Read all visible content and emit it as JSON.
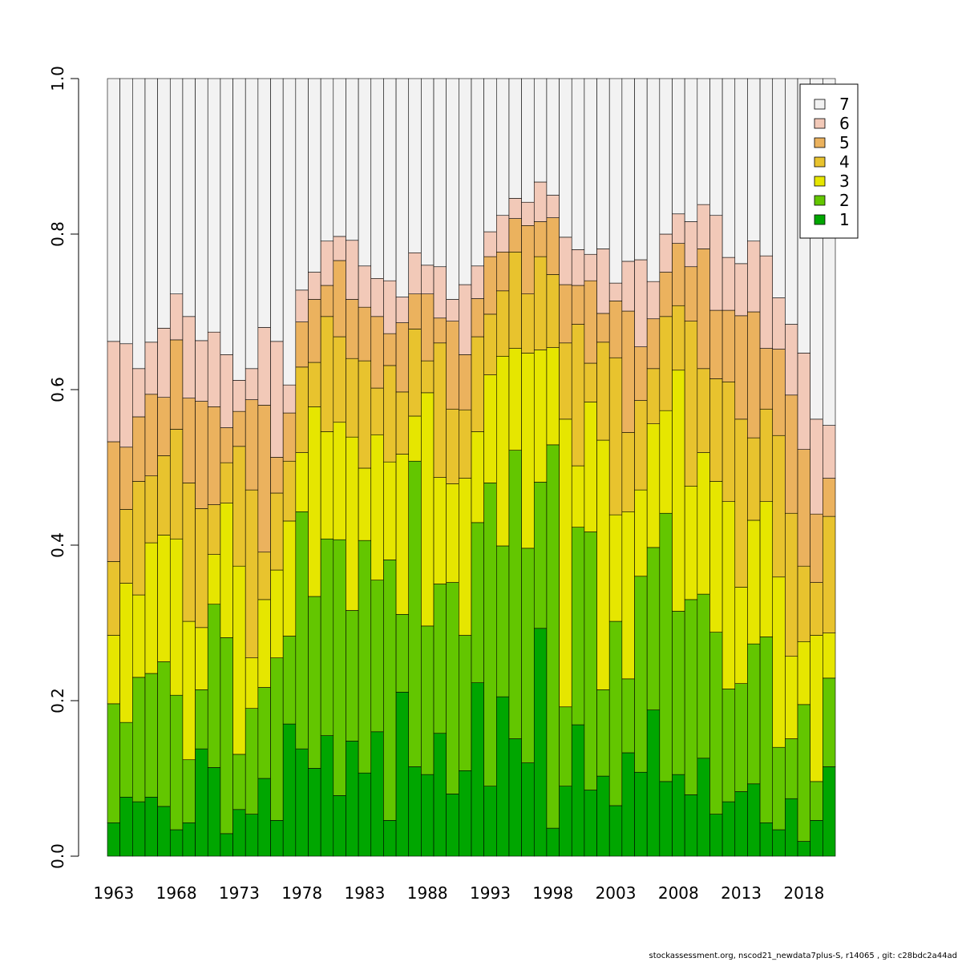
{
  "chart_data": {
    "type": "bar",
    "stacked": true,
    "categories": [
      1963,
      1964,
      1965,
      1966,
      1967,
      1968,
      1969,
      1970,
      1971,
      1972,
      1973,
      1974,
      1975,
      1976,
      1977,
      1978,
      1979,
      1980,
      1981,
      1982,
      1983,
      1984,
      1985,
      1986,
      1987,
      1988,
      1989,
      1990,
      1991,
      1992,
      1993,
      1994,
      1995,
      1996,
      1997,
      1998,
      1999,
      2000,
      2001,
      2002,
      2003,
      2004,
      2005,
      2006,
      2007,
      2008,
      2009,
      2010,
      2011,
      2012,
      2013,
      2014,
      2015,
      2016,
      2017,
      2018,
      2019,
      2020
    ],
    "x_tick_labels": [
      "1963",
      "1968",
      "1973",
      "1978",
      "1983",
      "1988",
      "1993",
      "1998",
      "2003",
      "2008",
      "2013",
      "2018"
    ],
    "y_tick_labels": [
      "0.0",
      "0.2",
      "0.4",
      "0.6",
      "0.8",
      "1.0"
    ],
    "ylim": [
      0,
      1
    ],
    "xlabel": "",
    "ylabel": "",
    "legend_position": "top-right",
    "legend_order": [
      "7",
      "6",
      "5",
      "4",
      "3",
      "2",
      "1"
    ],
    "colors": {
      "1": "#00a600",
      "2": "#63c600",
      "3": "#e6e600",
      "4": "#e8c32e",
      "5": "#ebb25e",
      "6": "#f2c9b8",
      "7": "#f2f2f2"
    },
    "cumulative_bounds": {
      "1": [
        0.043,
        0.076,
        0.07,
        0.076,
        0.064,
        0.034,
        0.043,
        0.138,
        0.114,
        0.029,
        0.06,
        0.054,
        0.1,
        0.046,
        0.17,
        0.138,
        0.113,
        0.155,
        0.078,
        0.148,
        0.107,
        0.16,
        0.046,
        0.211,
        0.115,
        0.105,
        0.158,
        0.08,
        0.11,
        0.223,
        0.09,
        0.205,
        0.151,
        0.12,
        0.293,
        0.036,
        0.09,
        0.169,
        0.085,
        0.103,
        0.065,
        0.133,
        0.108,
        0.188,
        0.096,
        0.105,
        0.079,
        0.126,
        0.054,
        0.07,
        0.083,
        0.093,
        0.043,
        0.034,
        0.074,
        0.019,
        0.046,
        0.115
      ],
      "2": [
        0.196,
        0.172,
        0.23,
        0.235,
        0.25,
        0.207,
        0.124,
        0.214,
        0.324,
        0.281,
        0.131,
        0.19,
        0.217,
        0.255,
        0.283,
        0.443,
        0.334,
        0.408,
        0.407,
        0.316,
        0.406,
        0.355,
        0.381,
        0.311,
        0.508,
        0.296,
        0.35,
        0.352,
        0.284,
        0.429,
        0.48,
        0.399,
        0.522,
        0.396,
        0.481,
        0.529,
        0.192,
        0.423,
        0.417,
        0.214,
        0.302,
        0.228,
        0.36,
        0.397,
        0.441,
        0.315,
        0.33,
        0.337,
        0.288,
        0.215,
        0.222,
        0.273,
        0.282,
        0.14,
        0.151,
        0.195,
        0.096,
        0.229
      ],
      "3": [
        0.284,
        0.351,
        0.336,
        0.403,
        0.413,
        0.408,
        0.302,
        0.294,
        0.388,
        0.454,
        0.373,
        0.255,
        0.33,
        0.368,
        0.431,
        0.519,
        0.578,
        0.546,
        0.558,
        0.539,
        0.499,
        0.542,
        0.507,
        0.517,
        0.566,
        0.596,
        0.487,
        0.479,
        0.486,
        0.546,
        0.619,
        0.643,
        0.653,
        0.647,
        0.651,
        0.654,
        0.562,
        0.502,
        0.584,
        0.535,
        0.439,
        0.443,
        0.471,
        0.556,
        0.573,
        0.625,
        0.476,
        0.519,
        0.482,
        0.456,
        0.346,
        0.432,
        0.456,
        0.359,
        0.257,
        0.276,
        0.284,
        0.287
      ],
      "4": [
        0.379,
        0.446,
        0.482,
        0.489,
        0.515,
        0.549,
        0.48,
        0.447,
        0.452,
        0.506,
        0.527,
        0.471,
        0.391,
        0.467,
        0.508,
        0.629,
        0.635,
        0.694,
        0.668,
        0.64,
        0.637,
        0.602,
        0.631,
        0.597,
        0.678,
        0.637,
        0.66,
        0.575,
        0.574,
        0.668,
        0.697,
        0.727,
        0.777,
        0.723,
        0.771,
        0.748,
        0.66,
        0.684,
        0.634,
        0.661,
        0.641,
        0.545,
        0.586,
        0.627,
        0.694,
        0.708,
        0.688,
        0.627,
        0.614,
        0.61,
        0.562,
        0.538,
        0.575,
        0.541,
        0.441,
        0.373,
        0.352,
        0.437
      ],
      "5": [
        0.533,
        0.526,
        0.565,
        0.594,
        0.59,
        0.664,
        0.589,
        0.585,
        0.578,
        0.551,
        0.572,
        0.587,
        0.58,
        0.513,
        0.57,
        0.687,
        0.716,
        0.734,
        0.766,
        0.716,
        0.706,
        0.694,
        0.672,
        0.686,
        0.723,
        0.723,
        0.692,
        0.688,
        0.645,
        0.717,
        0.771,
        0.777,
        0.82,
        0.811,
        0.816,
        0.821,
        0.735,
        0.734,
        0.74,
        0.698,
        0.714,
        0.701,
        0.655,
        0.691,
        0.751,
        0.788,
        0.758,
        0.781,
        0.702,
        0.702,
        0.695,
        0.7,
        0.653,
        0.652,
        0.593,
        0.523,
        0.44,
        0.486
      ],
      "6": [
        0.662,
        0.659,
        0.627,
        0.661,
        0.679,
        0.723,
        0.694,
        0.663,
        0.674,
        0.645,
        0.612,
        0.627,
        0.68,
        0.662,
        0.606,
        0.728,
        0.751,
        0.791,
        0.797,
        0.792,
        0.759,
        0.743,
        0.74,
        0.719,
        0.776,
        0.76,
        0.758,
        0.716,
        0.735,
        0.759,
        0.803,
        0.824,
        0.846,
        0.841,
        0.867,
        0.85,
        0.796,
        0.78,
        0.774,
        0.781,
        0.737,
        0.765,
        0.767,
        0.739,
        0.8,
        0.826,
        0.816,
        0.838,
        0.824,
        0.77,
        0.762,
        0.791,
        0.772,
        0.718,
        0.684,
        0.647,
        0.562,
        0.554
      ],
      "7": [
        1,
        1,
        1,
        1,
        1,
        1,
        1,
        1,
        1,
        1,
        1,
        1,
        1,
        1,
        1,
        1,
        1,
        1,
        1,
        1,
        1,
        1,
        1,
        1,
        1,
        1,
        1,
        1,
        1,
        1,
        1,
        1,
        1,
        1,
        1,
        1,
        1,
        1,
        1,
        1,
        1,
        1,
        1,
        1,
        1,
        1,
        1,
        1,
        1,
        1,
        1,
        1,
        1,
        1,
        1,
        1,
        1,
        1
      ]
    }
  },
  "footer": "stockassessment.org, nscod21_newdata7plus-S, r14065 , git: c28bdc2a44ad"
}
